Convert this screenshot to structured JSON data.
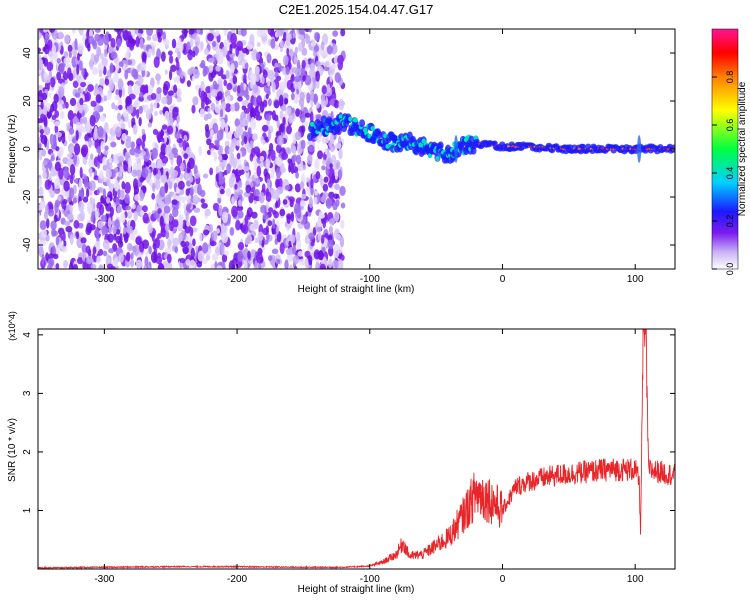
{
  "title": "C2E1.2025.154.04.47.G17",
  "chart_data": [
    {
      "type": "heatmap",
      "xlabel": "Height of straight line (km)",
      "ylabel": "Frequency (Hz)",
      "xlim": [
        -350,
        130
      ],
      "ylim": [
        -50,
        50
      ],
      "x_ticks": [
        -300,
        -200,
        -100,
        0,
        100
      ],
      "y_ticks": [
        -40,
        -20,
        0,
        20,
        40
      ],
      "colorbar": {
        "label": "Normalized spectral amplitude",
        "range": [
          0,
          1
        ],
        "ticks": [
          0.0,
          0.2,
          0.4,
          0.6,
          0.8
        ],
        "colors": [
          "#ffffff",
          "#c9b3f5",
          "#7b1bf0",
          "#1a1aff",
          "#00d0ff",
          "#00ff40",
          "#ffff00",
          "#ff8000",
          "#ff0000",
          "#ff1493"
        ]
      },
      "ridge": {
        "x": [
          -145,
          -130,
          -120,
          -110,
          -100,
          -90,
          -80,
          -70,
          -60,
          -50,
          -40,
          -35,
          -30,
          -25,
          -20,
          -10,
          0,
          20,
          50,
          80,
          100,
          105,
          110,
          130
        ],
        "freq": [
          8,
          10,
          11,
          9,
          7,
          4,
          2,
          3,
          1,
          -1,
          -2,
          0,
          1,
          2,
          2,
          2,
          1,
          1,
          0,
          0,
          0,
          0,
          0,
          0
        ]
      }
    },
    {
      "type": "line",
      "xlabel": "Height of straight line (km)",
      "ylabel": "SNR (10 * v/v)",
      "y_multiplier": "(x10^4)",
      "xlim": [
        -350,
        130
      ],
      "ylim": [
        0,
        4.1
      ],
      "x_ticks": [
        -300,
        -200,
        -100,
        0,
        100
      ],
      "y_ticks": [
        1,
        2,
        3,
        4
      ],
      "line_color": "#e8262a",
      "series": [
        {
          "x": [
            -350,
            -300,
            -250,
            -200,
            -150,
            -120,
            -100,
            -90,
            -80,
            -75,
            -70,
            -60,
            -50,
            -40,
            -30,
            -20,
            -10,
            0,
            10,
            20,
            30,
            40,
            60,
            80,
            100,
            103,
            104,
            106,
            108,
            110,
            120,
            130
          ],
          "y": [
            0.02,
            0.03,
            0.04,
            0.04,
            0.03,
            0.03,
            0.05,
            0.12,
            0.25,
            0.45,
            0.22,
            0.25,
            0.4,
            0.55,
            0.9,
            1.3,
            1.2,
            1.0,
            1.4,
            1.5,
            1.55,
            1.6,
            1.65,
            1.7,
            1.7,
            1.5,
            0.6,
            3.9,
            4.1,
            1.7,
            1.65,
            1.6
          ]
        }
      ]
    }
  ]
}
